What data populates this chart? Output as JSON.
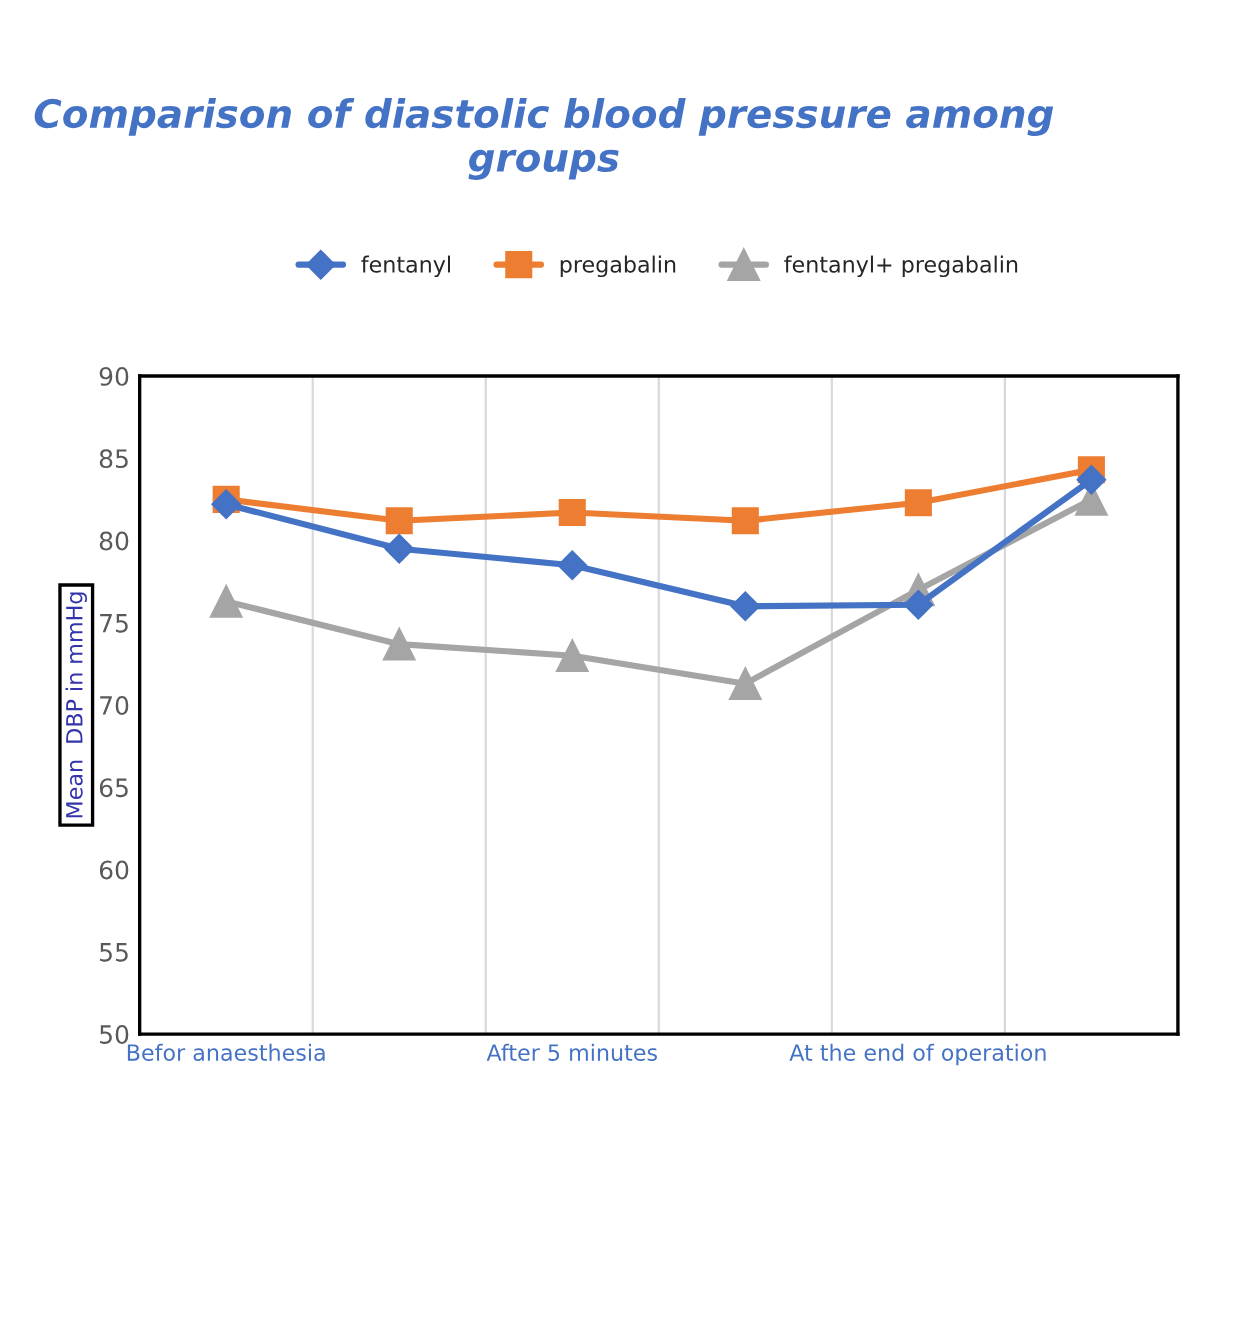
{
  "chart_data": {
    "type": "line",
    "title": "Comparison of diastolic blood pressure among groups",
    "ylabel": "Mean  DBP in mmHg",
    "categories": [
      "Befor anaesthesia",
      null,
      "After 5 minutes",
      null,
      "At the end of operation",
      null
    ],
    "series": [
      {
        "name": "fentanyl",
        "color": "#4472c4",
        "marker": "diamond",
        "values": [
          82.2,
          79.5,
          78.5,
          76.0,
          76.1,
          83.7
        ]
      },
      {
        "name": "pregabalin",
        "color": "#ed7d31",
        "marker": "square",
        "values": [
          82.5,
          81.2,
          81.7,
          81.2,
          82.3,
          84.3
        ]
      },
      {
        "name": "fentanyl+ pregabalin",
        "color": "#a5a5a5",
        "marker": "triangle",
        "values": [
          76.3,
          73.7,
          73.0,
          71.3,
          77.0,
          82.5
        ]
      }
    ],
    "ylim": [
      50,
      90
    ],
    "yticks": [
      50,
      55,
      60,
      65,
      70,
      75,
      80,
      85,
      90
    ],
    "grid": "x",
    "legend": "top",
    "line_style": "solid"
  }
}
